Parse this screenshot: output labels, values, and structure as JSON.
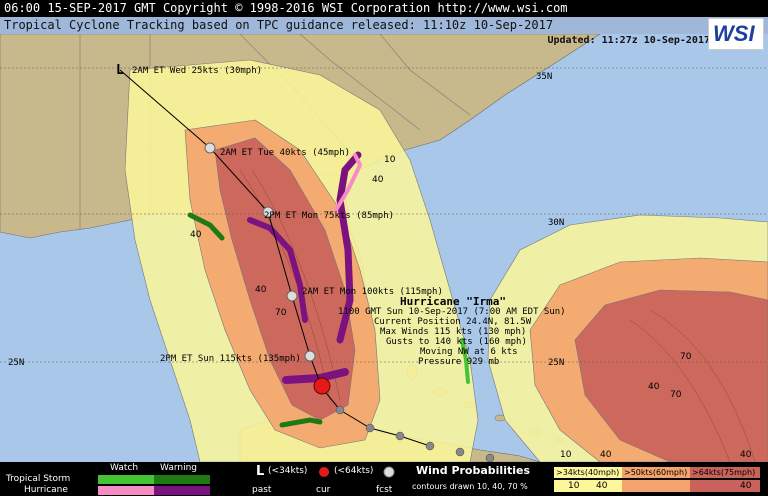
{
  "header": {
    "line1": "06:00 15-SEP-2017 GMT Copyright © 1998-2016 WSI Corporation   http://www.wsi.com",
    "line2": "Tropical Cyclone Tracking   based on TPC guidance released: 11:10z 10-Sep-2017",
    "updated": "Updated: 11:27z 10-Sep-2017",
    "logo": "WSI"
  },
  "map": {
    "lat_labels": [
      "35N",
      "30N",
      "25N"
    ],
    "prob_labels": [
      "10",
      "40",
      "70"
    ],
    "track_labels": [
      "2AM ET Wed 25kts (30mph)",
      "2AM ET Tue 40kts (45mph)",
      "2PM ET Mon 75kts (85mph)",
      "2AM ET Mon 100kts (115mph)",
      "2PM ET Sun 115kts (135mph)"
    ],
    "low_symbol": "L"
  },
  "storm": {
    "title": "Hurricane \"Irma\"",
    "time": "1100 GMT Sun 10-Sep-2017 (7:00 AM EDT Sun)",
    "position": "Current Position 24.4N, 81.5W",
    "winds": "Max Winds 115 kts (130 mph)",
    "gusts": "Gusts to 140 kts (160 mph)",
    "moving": "Moving NW at 6 kts",
    "pressure": "Pressure 929 mb"
  },
  "legend": {
    "watch": "Watch",
    "warning": "Warning",
    "tropical_storm": "Tropical Storm",
    "hurricane": "Hurricane",
    "low_symbol": "L",
    "kts34": "(<34kts)",
    "kts64": "(<64kts)",
    "past": "past",
    "cur": "cur",
    "fcst": "fcst",
    "wind_prob_title": "Wind Probabilities",
    "contours": "contours drawn 10, 40, 70 %",
    "p34": ">34kts(40mph)",
    "p50": ">50kts(60mph)",
    "p64": ">64kts(75mph)",
    "p34v": "10",
    "p50v": "40",
    "p64v": "40"
  },
  "colors": {
    "ocean": "#a9c7e8",
    "land": "#c8b98c",
    "prob10": "#fbf79a",
    "prob40": "#f4a36d",
    "prob70": "#c9625a",
    "ts_watch": "#44c433",
    "ts_warning": "#1f7a14",
    "hu_watch": "#f58cc4",
    "hu_warning": "#7b1280"
  }
}
